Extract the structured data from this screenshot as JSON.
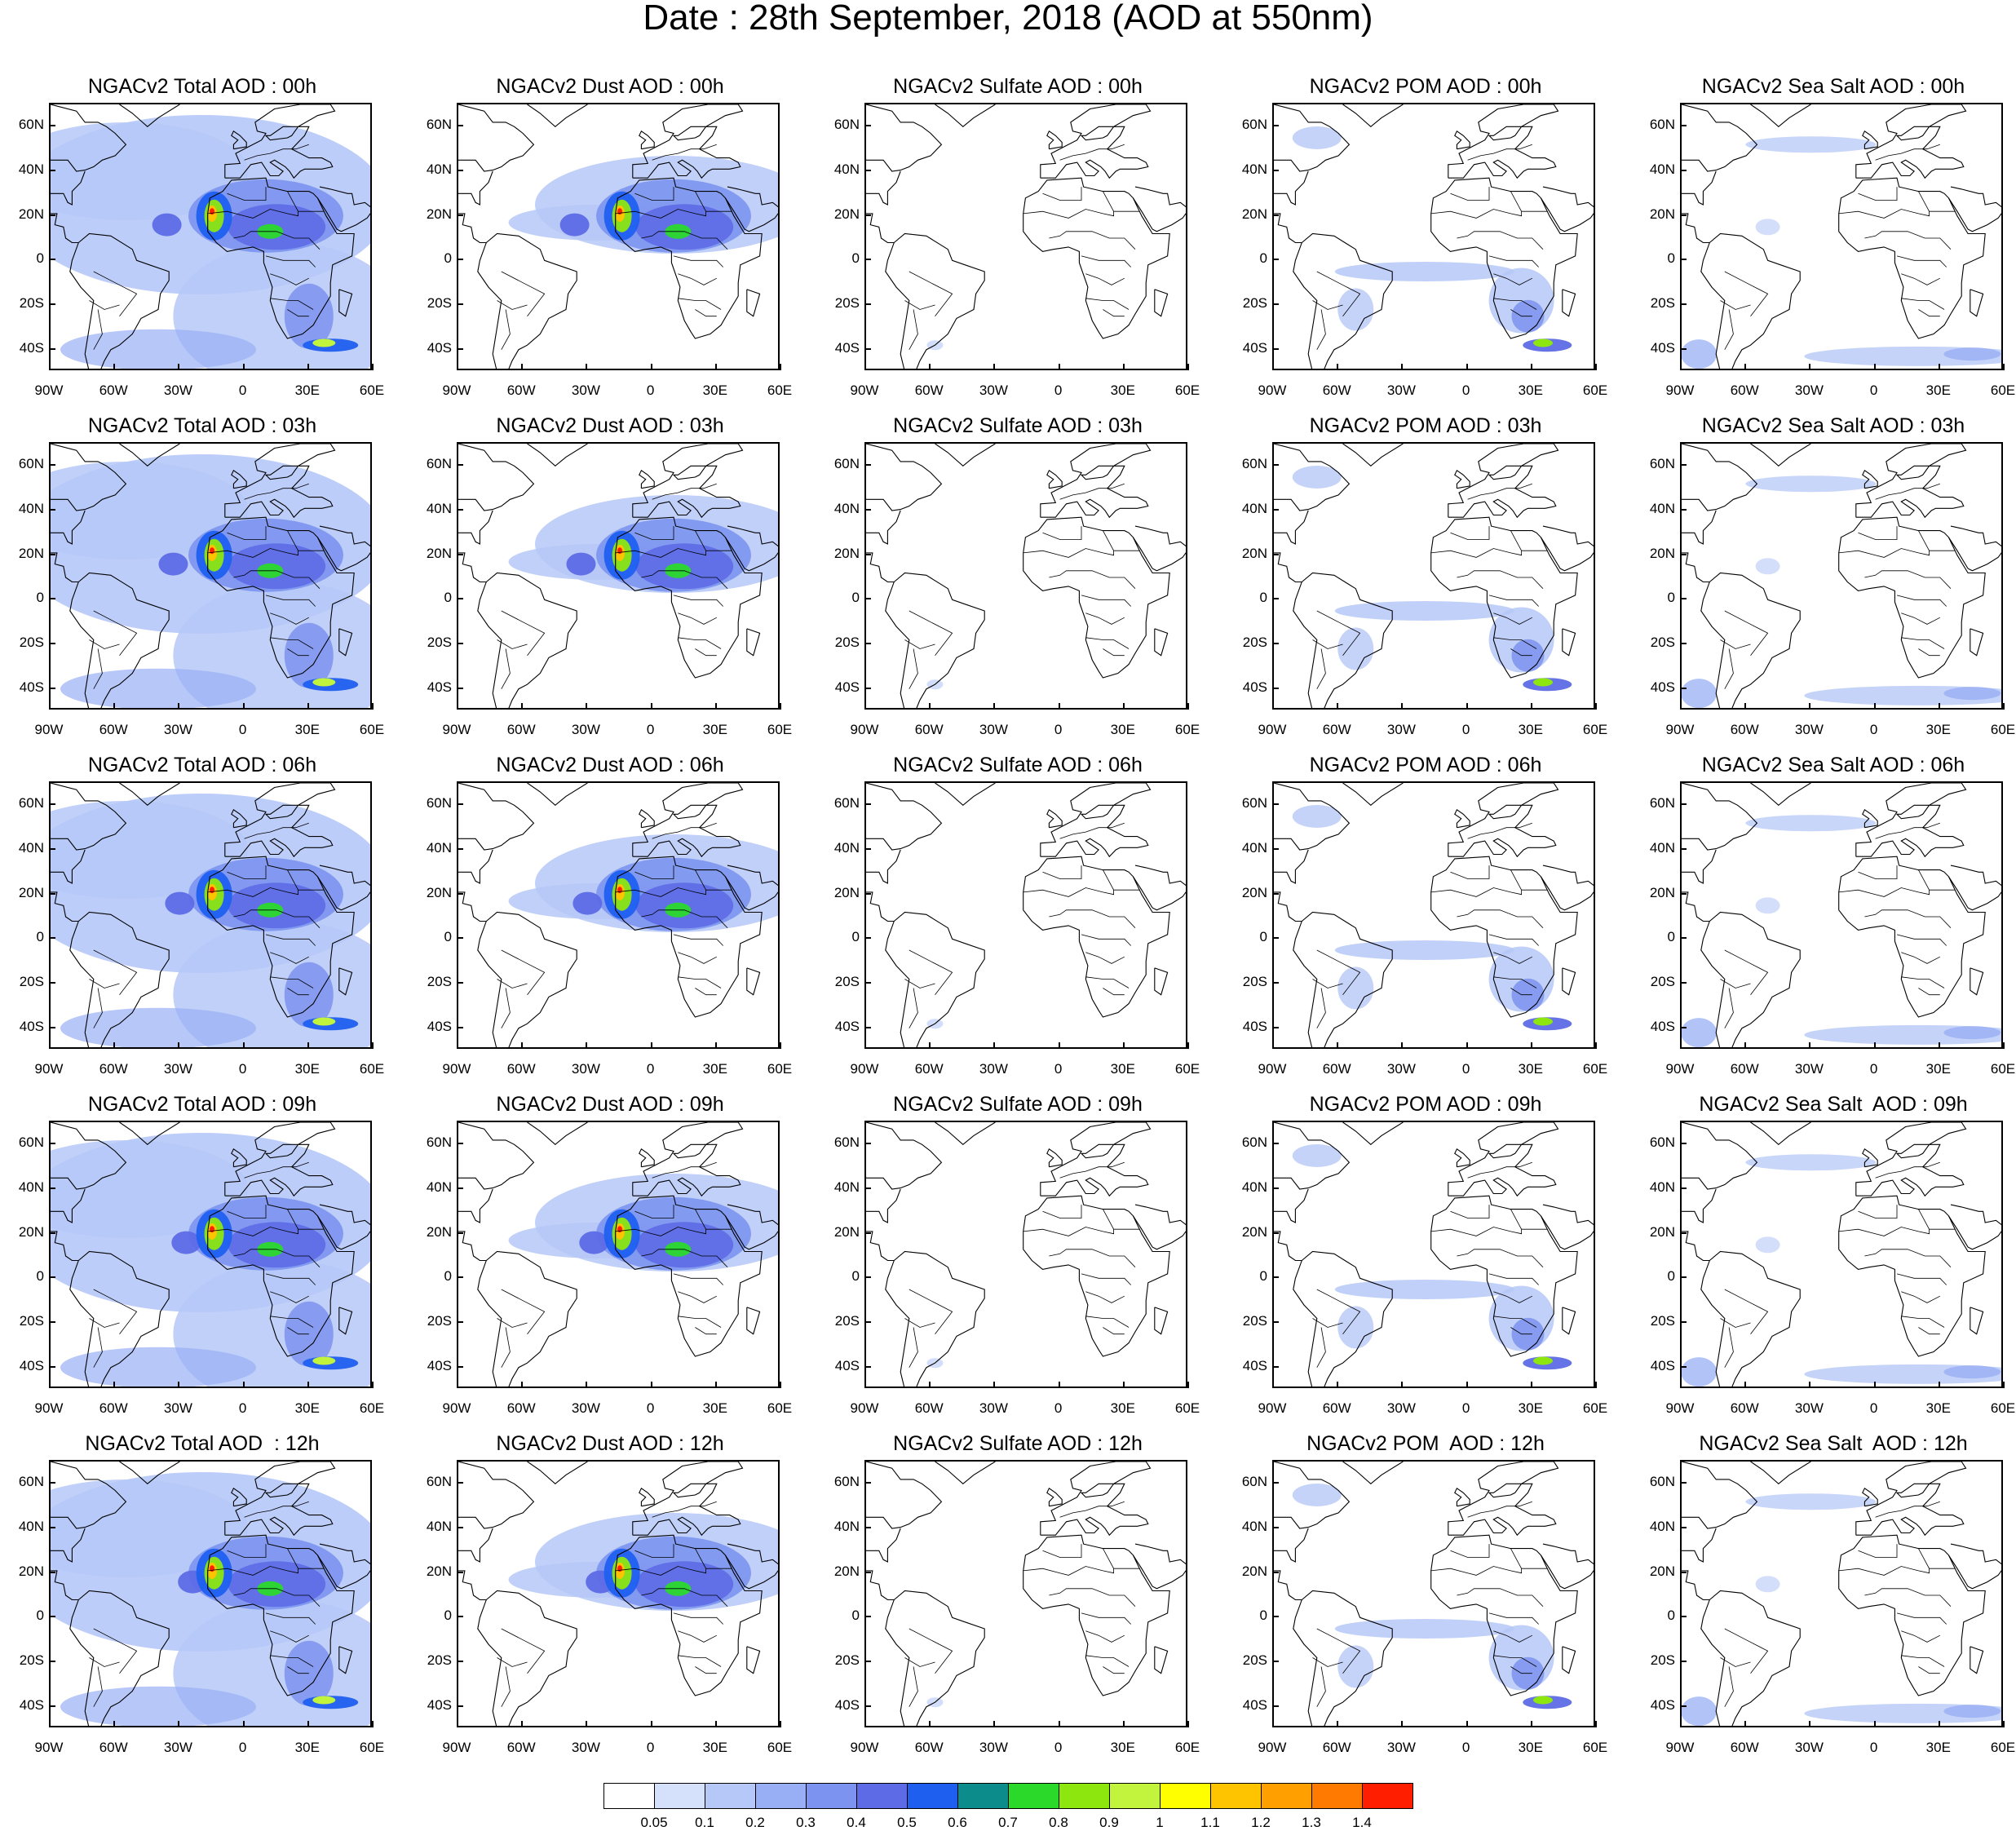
{
  "page_title": "Date : 28th September, 2018 (AOD at 550nm)",
  "map_axes": {
    "lat_labels": [
      "60N",
      "40N",
      "20N",
      "0",
      "20S",
      "40S"
    ],
    "lat_values": [
      60,
      40,
      20,
      0,
      -20,
      -40
    ],
    "lon_labels": [
      "90W",
      "60W",
      "30W",
      "0",
      "30E",
      "60E"
    ],
    "lon_values": [
      -90,
      -60,
      -30,
      0,
      30,
      60
    ],
    "lon_range": [
      -90,
      60
    ],
    "lat_range": [
      -50,
      70
    ]
  },
  "panel_titles": [
    [
      "NGACv2 Total AOD : 00h",
      "NGACv2 Dust AOD : 00h",
      "NGACv2 Sulfate AOD : 00h",
      "NGACv2 POM AOD : 00h",
      "NGACv2 Sea Salt AOD : 00h"
    ],
    [
      "NGACv2 Total AOD : 03h",
      "NGACv2 Dust AOD : 03h",
      "NGACv2 Sulfate AOD : 03h",
      "NGACv2 POM AOD : 03h",
      "NGACv2 Sea Salt AOD : 03h"
    ],
    [
      "NGACv2 Total AOD : 06h",
      "NGACv2 Dust AOD : 06h",
      "NGACv2 Sulfate AOD : 06h",
      "NGACv2 POM AOD : 06h",
      "NGACv2 Sea Salt AOD : 06h"
    ],
    [
      "NGACv2 Total AOD : 09h",
      "NGACv2 Dust AOD : 09h",
      "NGACv2 Sulfate AOD : 09h",
      "NGACv2 POM AOD : 09h",
      "NGACv2 Sea Salt  AOD : 09h"
    ],
    [
      "NGACv2 Total AOD  : 12h",
      "NGACv2 Dust AOD : 12h",
      "NGACv2 Sulfate AOD : 12h",
      "NGACv2 POM  AOD : 12h",
      "NGACv2 Sea Salt  AOD : 12h"
    ]
  ],
  "colorbar": {
    "labels": [
      "0.05",
      "0.1",
      "0.2",
      "0.3",
      "0.4",
      "0.5",
      "0.6",
      "0.7",
      "0.8",
      "0.9",
      "1",
      "1.1",
      "1.2",
      "1.3",
      "1.4"
    ],
    "colors": [
      "#ffffff",
      "#d5e0fb",
      "#b6c8f8",
      "#98aff5",
      "#7c93f0",
      "#5d6be6",
      "#1f5ff0",
      "#0d8c8c",
      "#2bd92b",
      "#8ee60f",
      "#c2f33d",
      "#ffff00",
      "#ffc400",
      "#ff9f00",
      "#ff7a00",
      "#ff1e00"
    ]
  },
  "chart_data": {
    "type": "heatmap",
    "description_fields": [
      "Total",
      "Dust",
      "Sulfate",
      "POM",
      "Sea Salt"
    ],
    "times": [
      "00h",
      "03h",
      "06h",
      "09h",
      "12h"
    ],
    "units": "AOD at 550nm",
    "features_by_type": {
      "Total": [
        {
          "lon": -15,
          "lat": 21,
          "max_aod": 1.4
        },
        {
          "lon": 12,
          "lat": 13,
          "max_aod": 0.8
        },
        {
          "lon": 38,
          "lat": -37,
          "max_aod": 1.0
        },
        {
          "lon": -35,
          "lat": 17,
          "max_aod": 0.5
        }
      ],
      "Dust": [
        {
          "lon": -15,
          "lat": 21,
          "max_aod": 1.4
        },
        {
          "lon": 12,
          "lat": 13,
          "max_aod": 0.8
        },
        {
          "lon": -35,
          "lat": 17,
          "max_aod": 0.5
        }
      ],
      "Sulfate": [],
      "POM": [
        {
          "lon": 30,
          "lat": -20,
          "max_aod": 0.2
        },
        {
          "lon": 35,
          "lat": -38,
          "max_aod": 0.9
        }
      ],
      "Sea Salt": [
        {
          "lon": -30,
          "lat": 55,
          "max_aod": 0.1
        },
        {
          "lon": 20,
          "lat": -45,
          "max_aod": 0.2
        }
      ]
    }
  }
}
